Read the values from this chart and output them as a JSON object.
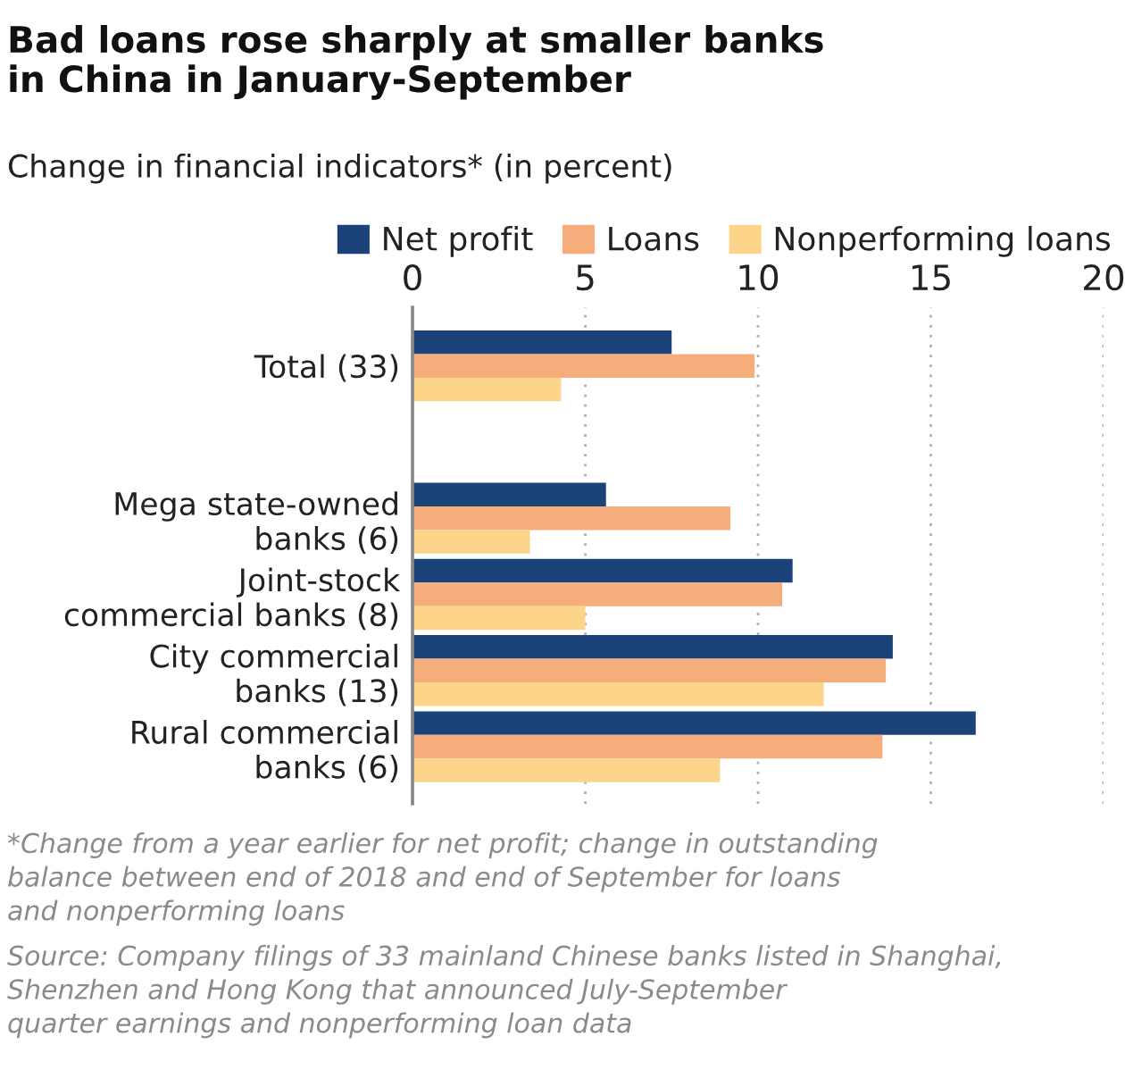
{
  "chart_data": {
    "type": "bar",
    "orientation": "horizontal",
    "title": "Bad loans rose sharply at smaller banks\nin China in January-September",
    "subtitle": "Change in financial indicators* (in percent)",
    "categories": [
      "Total (33)",
      null,
      "Mega state-owned\nbanks (6)",
      "Joint-stock\ncommercial banks (8)",
      "City commercial\nbanks (13)",
      "Rural commercial\nbanks (6)"
    ],
    "series": [
      {
        "name": "Net profit",
        "color": "#1b4379",
        "values": [
          7.5,
          null,
          5.6,
          11.0,
          13.9,
          16.3
        ]
      },
      {
        "name": "Loans",
        "color": "#f4ad7b",
        "values": [
          9.9,
          null,
          9.2,
          10.7,
          13.7,
          13.6
        ]
      },
      {
        "name": "Nonperforming loans",
        "color": "#fcd58b",
        "values": [
          4.3,
          null,
          3.4,
          5.0,
          11.9,
          8.9
        ]
      }
    ],
    "xlim": [
      0,
      20
    ],
    "xticks": [
      0,
      5,
      10,
      15,
      20
    ],
    "grid": "x",
    "legend": "top right",
    "annotations": [
      "*Change from a year earlier for net profit; change in outstanding\nbalance between end of 2018 and end of September for loans\nand nonperforming loans",
      "Source: Company filings of 33 mainland Chinese banks listed in Shanghai,\nShenzhen and Hong Kong that announced July-September\nquarter earnings and nonperforming loan data"
    ]
  }
}
